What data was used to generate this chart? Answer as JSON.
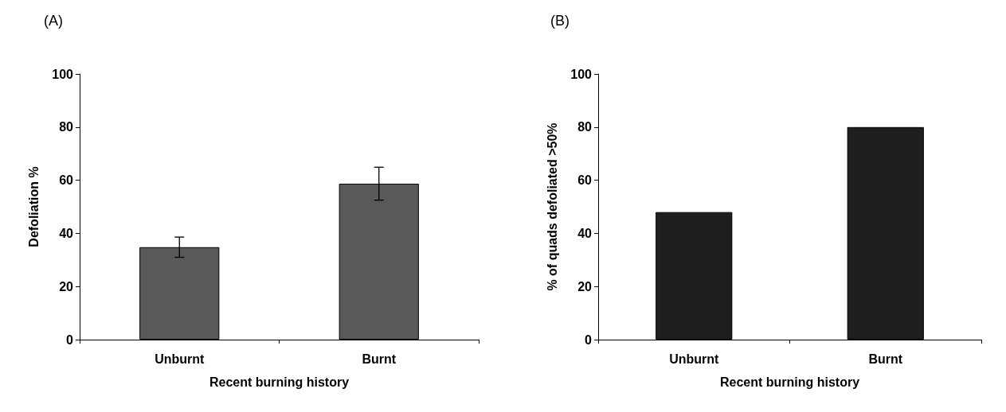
{
  "chart_data": [
    {
      "type": "bar",
      "title": "(A)",
      "categories": [
        "Unburnt",
        "Burnt"
      ],
      "values": [
        34.8,
        58.7
      ],
      "errors": [
        3.8,
        6.2
      ],
      "color": "#595959",
      "xlabel": "Recent burning history",
      "ylabel": "Defoliation %",
      "ylim": [
        0,
        100
      ],
      "yticks": [
        0,
        20,
        40,
        60,
        80,
        100
      ]
    },
    {
      "type": "bar",
      "title": "(B)",
      "categories": [
        "Unburnt",
        "Burnt"
      ],
      "values": [
        48,
        80
      ],
      "color": "#1e1e1e",
      "xlabel": "Recent burning history",
      "ylabel": "% of quads defoliated >50%",
      "ylim": [
        0,
        100
      ],
      "yticks": [
        0,
        20,
        40,
        60,
        80,
        100
      ]
    }
  ]
}
